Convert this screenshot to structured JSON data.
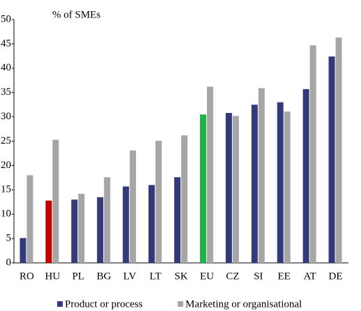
{
  "chart_data": {
    "type": "bar",
    "annotation": "% of SMEs",
    "categories": [
      "RO",
      "HU",
      "PL",
      "BG",
      "LV",
      "LT",
      "SK",
      "EU",
      "CZ",
      "SI",
      "EE",
      "AT",
      "DE"
    ],
    "series": [
      {
        "name": "Product or process",
        "color": "#333a7a",
        "colors": [
          "#333a7a",
          "#c00000",
          "#333a7a",
          "#333a7a",
          "#333a7a",
          "#333a7a",
          "#333a7a",
          "#1bb44a",
          "#333a7a",
          "#333a7a",
          "#333a7a",
          "#333a7a",
          "#333a7a"
        ],
        "values": [
          5.1,
          12.8,
          13.0,
          13.5,
          15.7,
          16.0,
          17.6,
          30.5,
          30.8,
          32.5,
          33.0,
          35.7,
          42.4
        ]
      },
      {
        "name": "Marketing or organisational",
        "color": "#a6a6a6",
        "values": [
          18.0,
          25.3,
          14.2,
          17.6,
          23.1,
          25.1,
          26.2,
          36.2,
          30.2,
          35.9,
          31.1,
          44.7,
          46.3
        ]
      }
    ],
    "ylim": [
      0,
      50
    ],
    "yticks": [
      0,
      5,
      10,
      15,
      20,
      25,
      30,
      35,
      40,
      45,
      50
    ],
    "grid": false,
    "legend": "bottom"
  }
}
